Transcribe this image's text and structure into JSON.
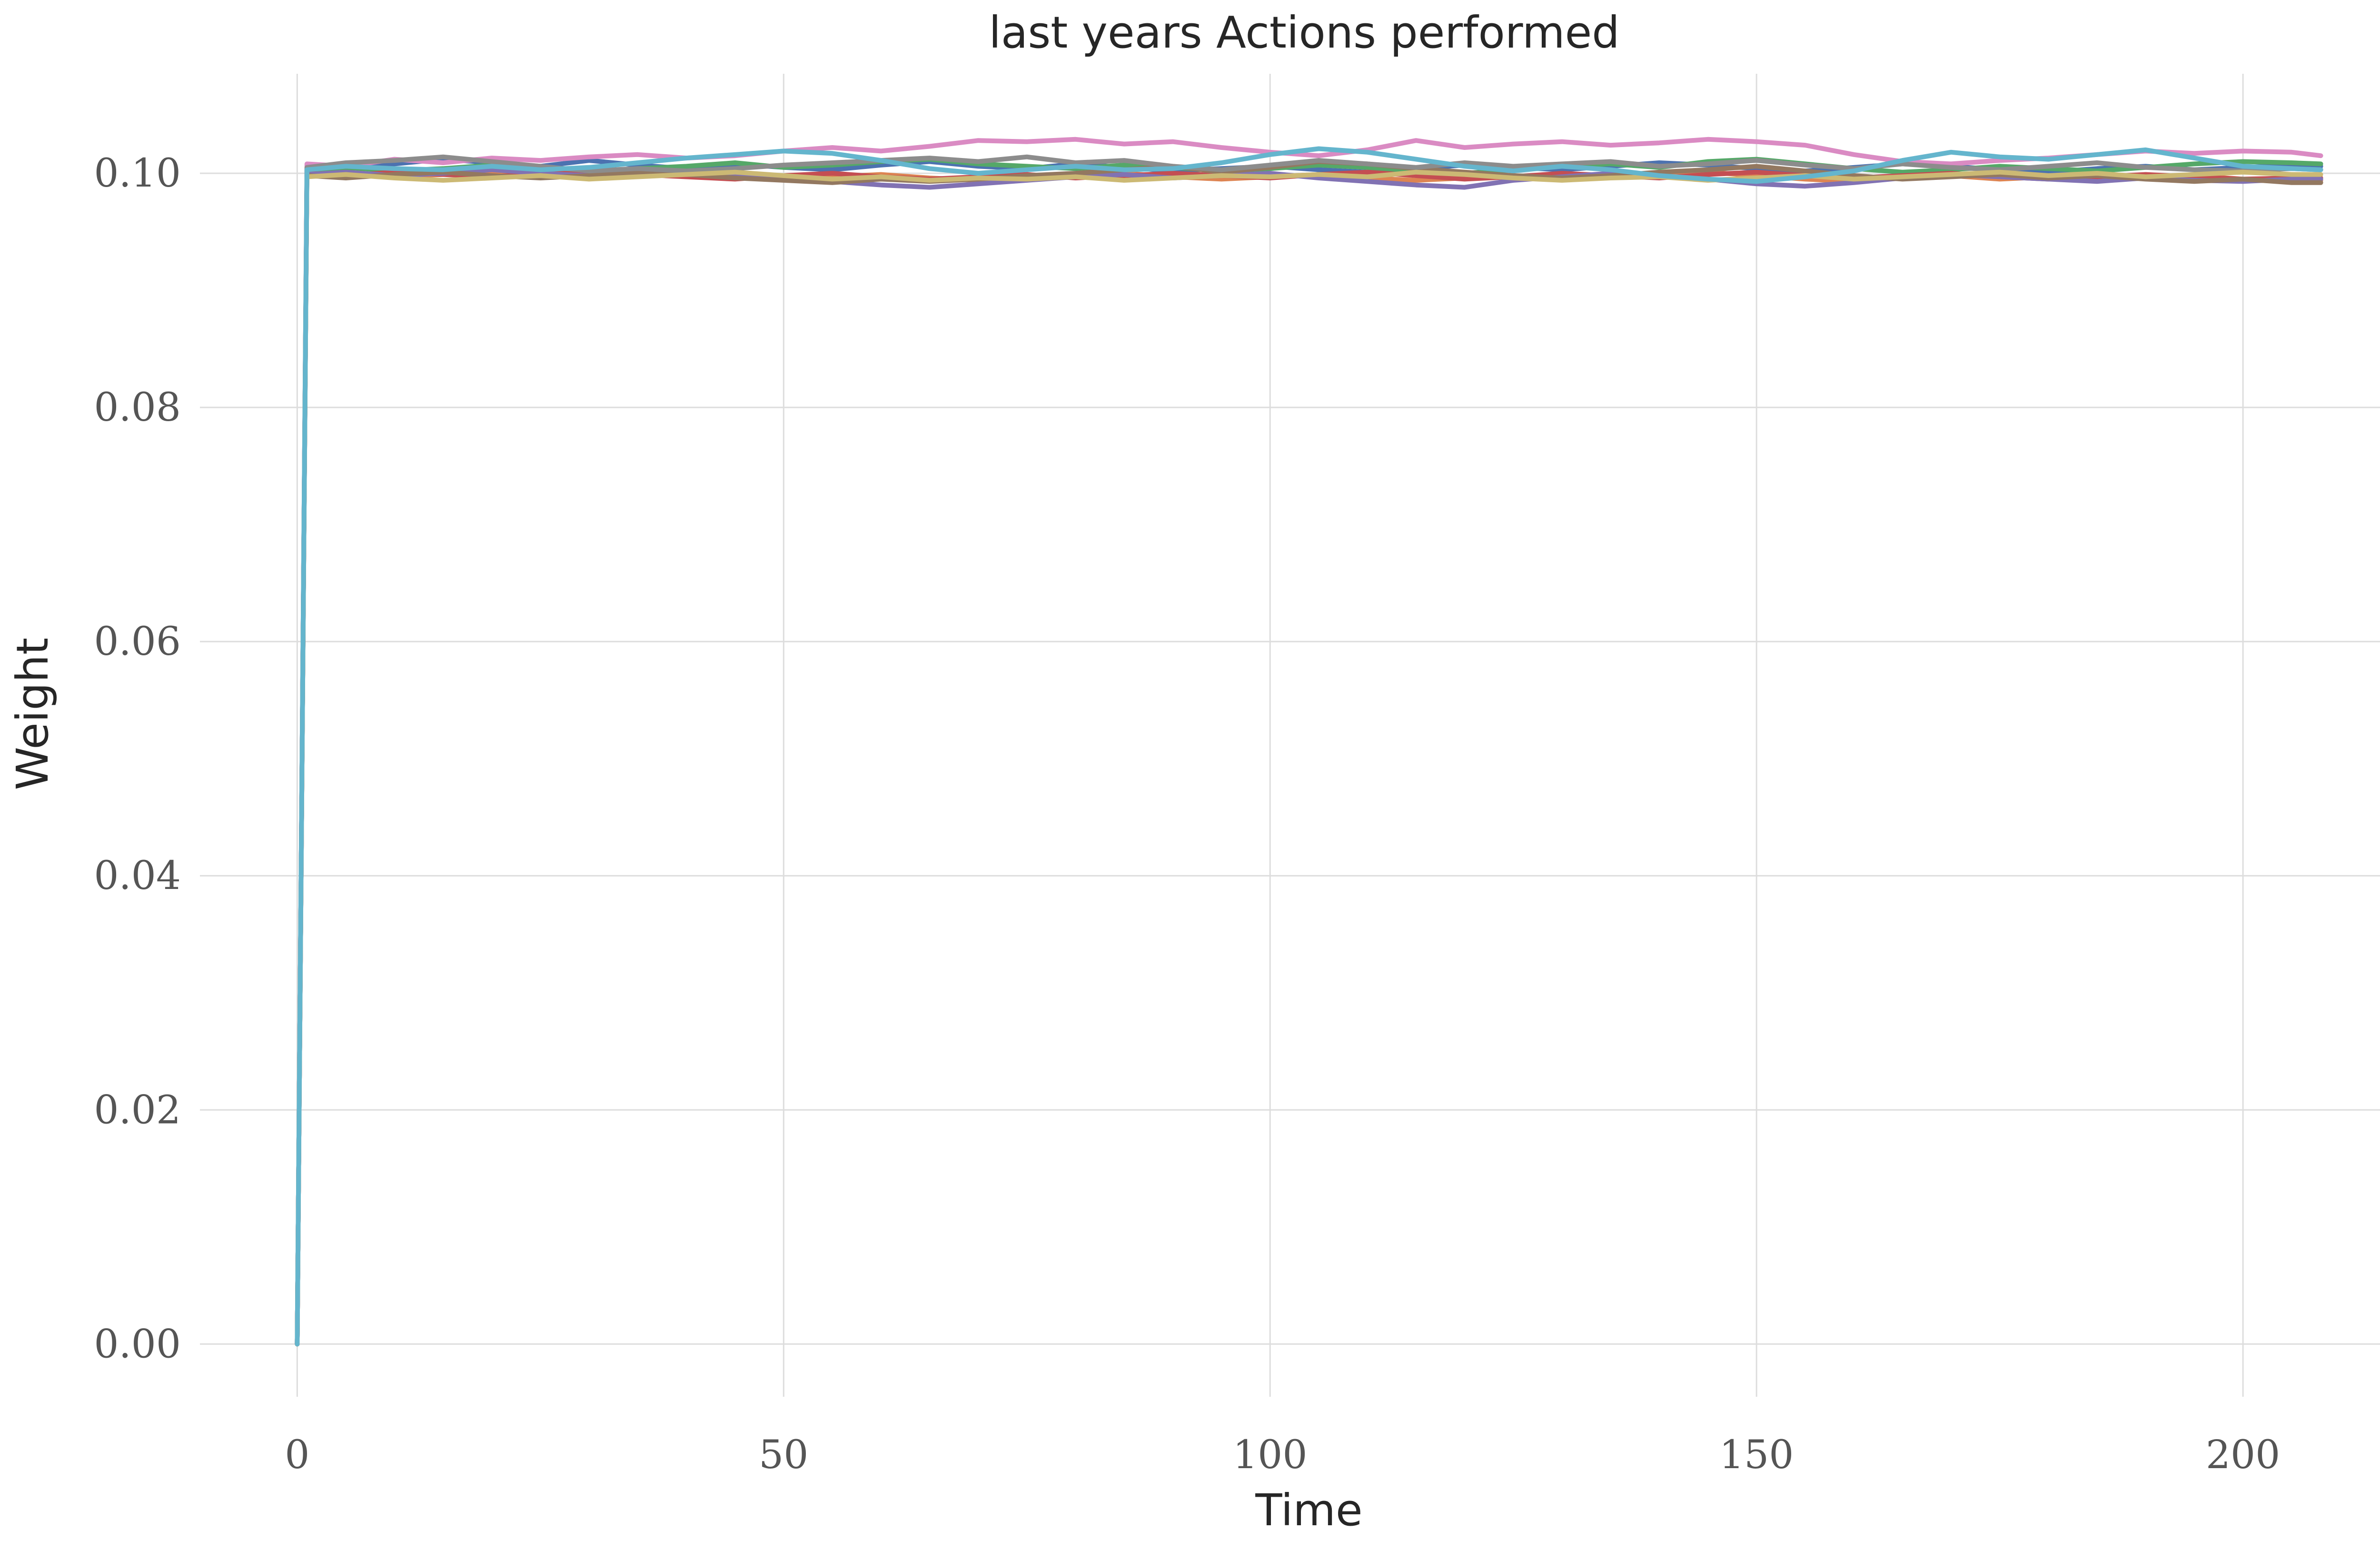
{
  "chart_data": {
    "type": "line",
    "title": "last years Actions performed",
    "xlabel": "Time",
    "ylabel": "Weight",
    "xlim": [
      -10,
      218
    ],
    "ylim": [
      -0.0045,
      0.1085
    ],
    "xticks": [
      0,
      50,
      100,
      150,
      200
    ],
    "xtick_labels": [
      "0",
      "50",
      "100",
      "150",
      "200"
    ],
    "yticks": [
      0.0,
      0.02,
      0.04,
      0.06,
      0.08,
      0.1
    ],
    "ytick_labels": [
      "0.00",
      "0.02",
      "0.04",
      "0.06",
      "0.08",
      "0.10"
    ],
    "grid": true,
    "legend": "none",
    "x": [
      0,
      1,
      5,
      10,
      15,
      20,
      25,
      30,
      35,
      40,
      45,
      50,
      55,
      60,
      65,
      70,
      75,
      80,
      85,
      90,
      95,
      100,
      105,
      110,
      115,
      120,
      125,
      130,
      135,
      140,
      145,
      150,
      155,
      160,
      165,
      170,
      175,
      180,
      185,
      190,
      195,
      200,
      205,
      208
    ],
    "series": [
      {
        "color": "#4c72b0",
        "values": [
          0,
          0.1002,
          0.1004,
          0.1008,
          0.1012,
          0.1009,
          0.1006,
          0.1011,
          0.1007,
          0.1004,
          0.1008,
          0.1005,
          0.1003,
          0.1007,
          0.101,
          0.1006,
          0.1004,
          0.1008,
          0.1005,
          0.1002,
          0.1004,
          0.1006,
          0.1003,
          0.1001,
          0.1004,
          0.1007,
          0.1005,
          0.1003,
          0.1006,
          0.1009,
          0.1007,
          0.1004,
          0.1002,
          0.1005,
          0.1008,
          0.1006,
          0.1003,
          0.1001,
          0.1004,
          0.1006,
          0.1003,
          0.1005,
          0.1007,
          0.1006
        ]
      },
      {
        "color": "#dd8452",
        "values": [
          0,
          0.1001,
          0.0999,
          0.0997,
          0.0999,
          0.1001,
          0.0998,
          0.0996,
          0.0998,
          0.1,
          0.0997,
          0.0995,
          0.0997,
          0.0999,
          0.0996,
          0.0994,
          0.0996,
          0.0998,
          0.1,
          0.0997,
          0.0995,
          0.0997,
          0.0999,
          0.0996,
          0.0994,
          0.0996,
          0.0998,
          0.0995,
          0.0997,
          0.0999,
          0.1001,
          0.0998,
          0.0995,
          0.0993,
          0.0996,
          0.0998,
          0.0995,
          0.0997,
          0.0994,
          0.0996,
          0.0998,
          0.0995,
          0.0993,
          0.0994
        ]
      },
      {
        "color": "#55a868",
        "values": [
          0,
          0.1003,
          0.1005,
          0.1002,
          0.1004,
          0.1007,
          0.1003,
          0.1001,
          0.1004,
          0.1006,
          0.1009,
          0.1005,
          0.1007,
          0.101,
          0.1012,
          0.1008,
          0.1006,
          0.1004,
          0.1007,
          0.1005,
          0.1002,
          0.1004,
          0.1007,
          0.1005,
          0.1002,
          0.1,
          0.1003,
          0.1006,
          0.1008,
          0.1005,
          0.101,
          0.1012,
          0.1008,
          0.1004,
          0.1001,
          0.1003,
          0.1006,
          0.1004,
          0.1002,
          0.1005,
          0.1008,
          0.101,
          0.1009,
          0.1008
        ]
      },
      {
        "color": "#c44e52",
        "values": [
          0,
          0.1,
          0.0998,
          0.1001,
          0.0999,
          0.0997,
          0.1,
          0.1002,
          0.0999,
          0.0997,
          0.0995,
          0.0998,
          0.1,
          0.0997,
          0.0995,
          0.0997,
          0.0999,
          0.0996,
          0.0998,
          0.1,
          0.0998,
          0.0996,
          0.0999,
          0.1001,
          0.0998,
          0.0995,
          0.0997,
          0.1,
          0.0998,
          0.0996,
          0.0999,
          0.1001,
          0.0998,
          0.0996,
          0.0998,
          0.1,
          0.0997,
          0.0995,
          0.0997,
          0.0999,
          0.0997,
          0.0995,
          0.0996,
          0.0996
        ]
      },
      {
        "color": "#8172b3",
        "values": [
          0,
          0.0999,
          0.1001,
          0.0998,
          0.1,
          0.1003,
          0.1,
          0.0998,
          0.1001,
          0.0999,
          0.0997,
          0.0995,
          0.0993,
          0.099,
          0.0988,
          0.0991,
          0.0994,
          0.0997,
          0.0999,
          0.0996,
          0.0998,
          0.1,
          0.0996,
          0.0993,
          0.099,
          0.0988,
          0.0994,
          0.0997,
          0.1,
          0.0998,
          0.0995,
          0.0991,
          0.0989,
          0.0992,
          0.0996,
          0.0999,
          0.0997,
          0.0995,
          0.0993,
          0.0996,
          0.0994,
          0.0993,
          0.0995,
          0.0995
        ]
      },
      {
        "color": "#937860",
        "values": [
          0,
          0.0998,
          0.0996,
          0.0999,
          0.1001,
          0.0998,
          0.0996,
          0.0998,
          0.1001,
          0.0999,
          0.0996,
          0.0994,
          0.0992,
          0.0995,
          0.0993,
          0.0995,
          0.0998,
          0.1,
          0.1003,
          0.1006,
          0.1001,
          0.1005,
          0.101,
          0.1008,
          0.1004,
          0.1001,
          0.0998,
          0.0996,
          0.0998,
          0.1001,
          0.1003,
          0.1006,
          0.1002,
          0.0998,
          0.0995,
          0.0997,
          0.0999,
          0.0996,
          0.0998,
          0.0995,
          0.0993,
          0.0995,
          0.0992,
          0.0992
        ]
      },
      {
        "color": "#da8bc3",
        "values": [
          0,
          0.1008,
          0.1006,
          0.1012,
          0.1009,
          0.1013,
          0.1011,
          0.1014,
          0.1016,
          0.1013,
          0.1015,
          0.1019,
          0.1022,
          0.1019,
          0.1023,
          0.1028,
          0.1027,
          0.1029,
          0.1025,
          0.1027,
          0.1022,
          0.1018,
          0.1015,
          0.102,
          0.1028,
          0.1022,
          0.1025,
          0.1027,
          0.1024,
          0.1026,
          0.1029,
          0.1027,
          0.1024,
          0.1016,
          0.101,
          0.1008,
          0.1011,
          0.1013,
          0.1016,
          0.1019,
          0.1017,
          0.1019,
          0.1018,
          0.1015
        ]
      },
      {
        "color": "#8c8c8c",
        "values": [
          0,
          0.1005,
          0.1009,
          0.1011,
          0.1014,
          0.101,
          0.1006,
          0.1002,
          0.1004,
          0.1002,
          0.1004,
          0.1007,
          0.1009,
          0.1011,
          0.1013,
          0.101,
          0.1014,
          0.1009,
          0.1011,
          0.1006,
          0.1003,
          0.1007,
          0.1011,
          0.1008,
          0.1005,
          0.1009,
          0.1006,
          0.1008,
          0.101,
          0.1006,
          0.1008,
          0.1011,
          0.1007,
          0.1004,
          0.1008,
          0.1005,
          0.1003,
          0.1006,
          0.1009,
          0.1005,
          0.1003,
          0.1002,
          0.1004,
          0.1003
        ]
      },
      {
        "color": "#ccb974",
        "values": [
          0,
          0.0997,
          0.0999,
          0.0996,
          0.0994,
          0.0996,
          0.0998,
          0.0995,
          0.0997,
          0.0999,
          0.1001,
          0.0998,
          0.0995,
          0.0997,
          0.0994,
          0.0996,
          0.0995,
          0.0997,
          0.0994,
          0.0996,
          0.0998,
          0.0997,
          0.0999,
          0.0997,
          0.1001,
          0.0999,
          0.0996,
          0.0994,
          0.0996,
          0.0997,
          0.0994,
          0.0996,
          0.0998,
          0.0995,
          0.0997,
          0.0999,
          0.1001,
          0.0998,
          0.1,
          0.0997,
          0.0999,
          0.1001,
          0.0999,
          0.0999
        ]
      },
      {
        "color": "#64b5cd",
        "values": [
          0,
          0.1003,
          0.1006,
          0.1004,
          0.1003,
          0.1006,
          0.1003,
          0.1005,
          0.1009,
          0.1013,
          0.1016,
          0.1019,
          0.1017,
          0.1011,
          0.1004,
          0.1,
          0.1003,
          0.1006,
          0.1003,
          0.1004,
          0.1009,
          0.1016,
          0.1021,
          0.1018,
          0.1012,
          0.1006,
          0.1002,
          0.1006,
          0.1003,
          0.0998,
          0.0995,
          0.0993,
          0.0997,
          0.1002,
          0.1011,
          0.1018,
          0.1014,
          0.1012,
          0.1016,
          0.102,
          0.1013,
          0.1006,
          0.1004,
          0.1003
        ]
      }
    ]
  }
}
